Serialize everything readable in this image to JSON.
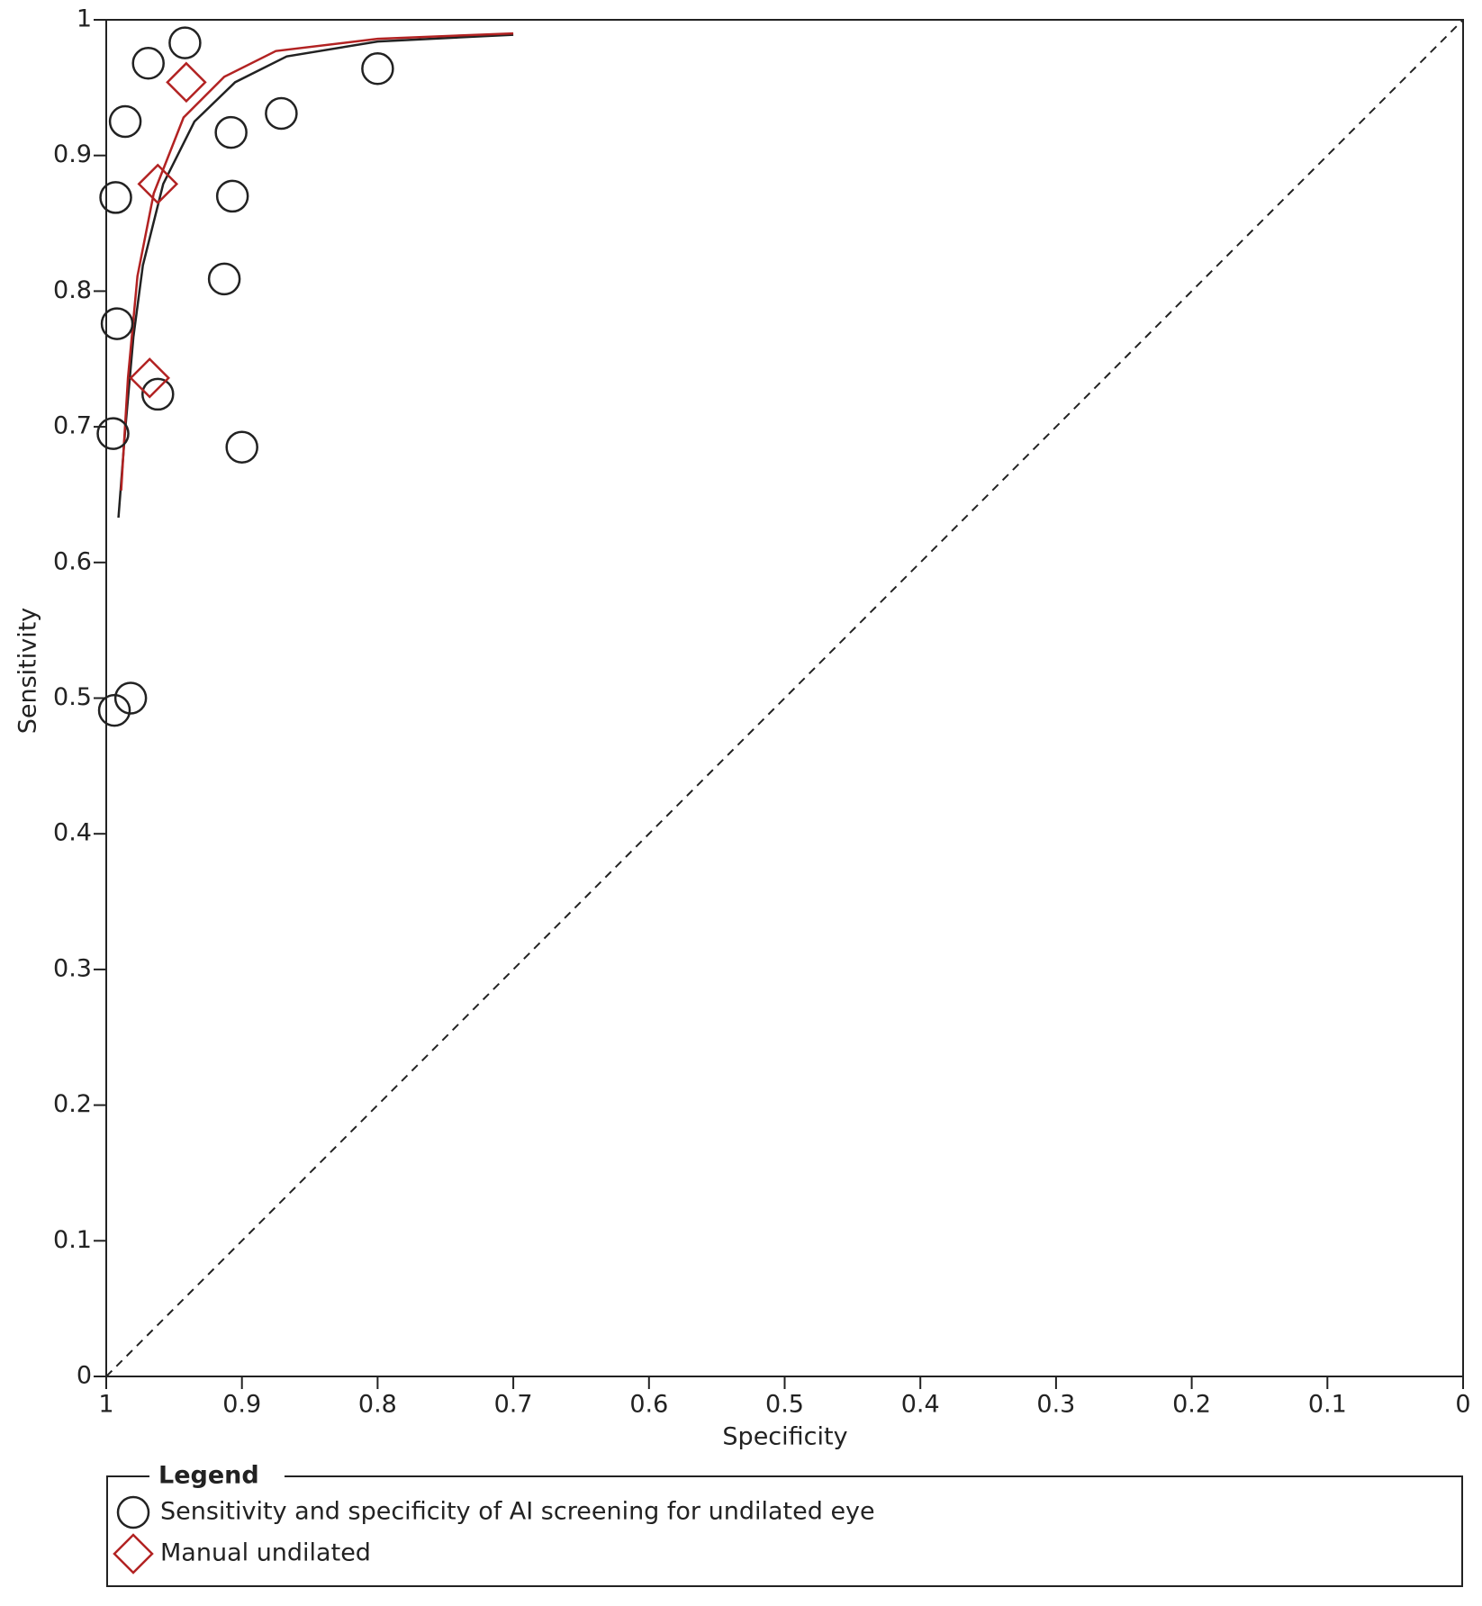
{
  "chart_data": {
    "type": "scatter",
    "xlabel": "Specificity",
    "ylabel": "Sensitivity",
    "xlim": [
      1,
      0
    ],
    "ylim": [
      0,
      1
    ],
    "xticks": [
      1,
      0.9,
      0.8,
      0.7,
      0.6,
      0.5,
      0.4,
      0.3,
      0.2,
      0.1,
      0
    ],
    "yticks": [
      0,
      0.1,
      0.2,
      0.3,
      0.4,
      0.5,
      0.6,
      0.7,
      0.8,
      0.9,
      1
    ],
    "legend_title": "Legend",
    "series": [
      {
        "name": "Sensitivity and specificity of AI screening for undilated eye",
        "color": "#222222",
        "marker": "circle",
        "x": [
          0.942,
          0.969,
          0.986,
          0.993,
          0.992,
          0.962,
          0.995,
          0.994,
          0.982,
          0.908,
          0.907,
          0.913,
          0.9,
          0.871,
          0.8
        ],
        "values": [
          0.983,
          0.968,
          0.925,
          0.869,
          0.776,
          0.724,
          0.695,
          0.491,
          0.5,
          0.917,
          0.87,
          0.809,
          0.685,
          0.931,
          0.964
        ]
      },
      {
        "name": "Manual undilated",
        "color": "#b22222",
        "marker": "diamond",
        "x": [
          0.941,
          0.962,
          0.968
        ],
        "values": [
          0.954,
          0.879,
          0.736
        ]
      }
    ],
    "curves": [
      {
        "color": "#222222",
        "x": [
          0.991,
          0.986,
          0.98,
          0.973,
          0.958,
          0.935,
          0.905,
          0.867,
          0.8,
          0.7
        ],
        "y": [
          0.633,
          0.698,
          0.766,
          0.819,
          0.879,
          0.925,
          0.954,
          0.973,
          0.984,
          0.989
        ]
      },
      {
        "color": "#b22222",
        "x": [
          0.989,
          0.984,
          0.977,
          0.965,
          0.943,
          0.913,
          0.875,
          0.8,
          0.7
        ],
        "y": [
          0.653,
          0.736,
          0.811,
          0.872,
          0.928,
          0.958,
          0.977,
          0.986,
          0.99
        ]
      }
    ]
  }
}
